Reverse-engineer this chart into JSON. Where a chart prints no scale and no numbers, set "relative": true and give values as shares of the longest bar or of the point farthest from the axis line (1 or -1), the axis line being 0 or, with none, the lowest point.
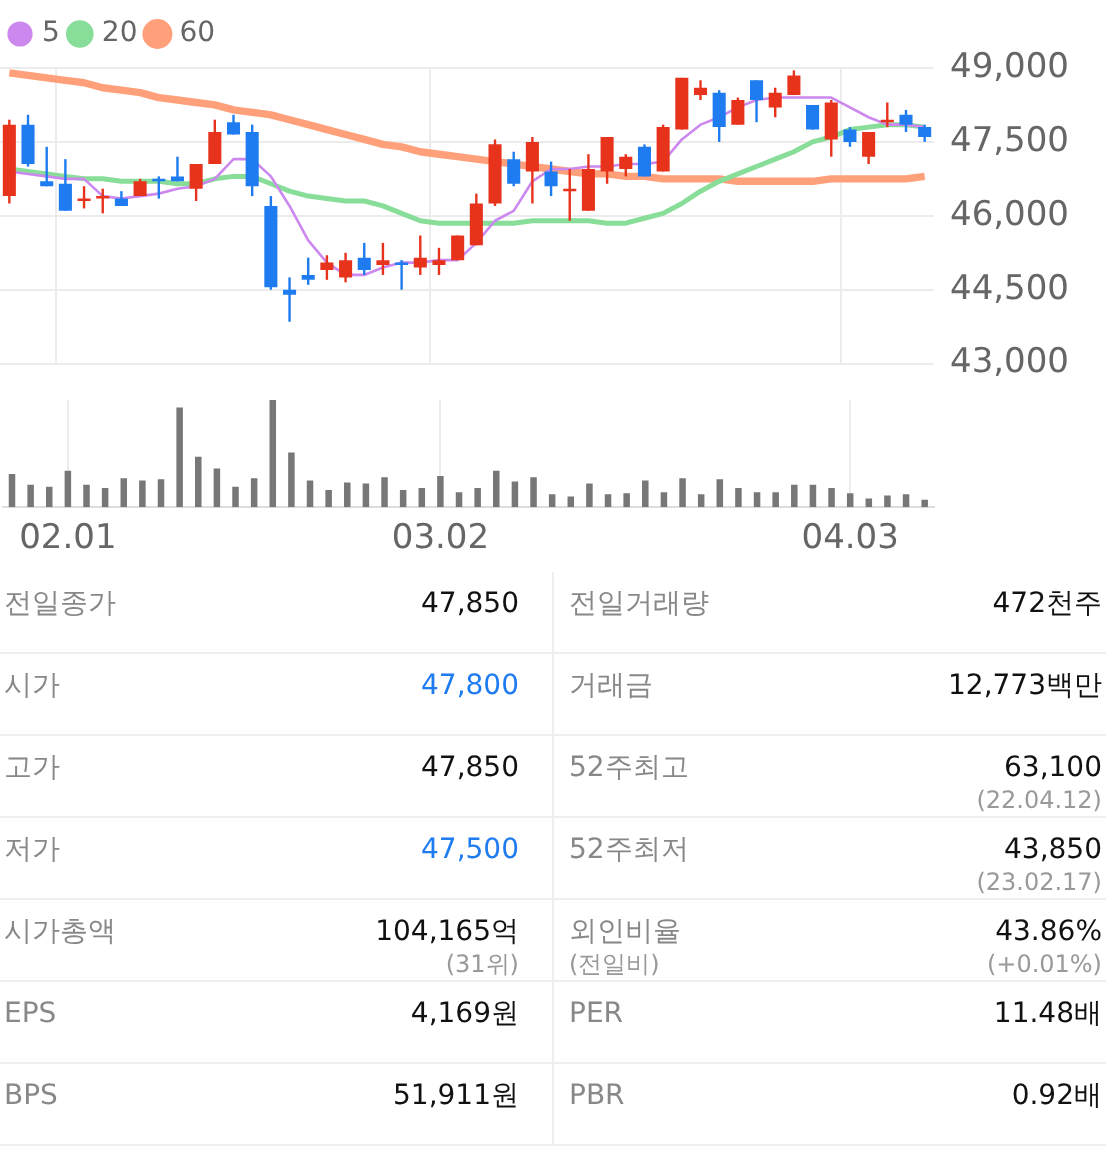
{
  "chart_data": [
    {
      "type": "candlestick",
      "categories": [
        null,
        null,
        null,
        "02.01",
        null,
        null,
        null,
        null,
        null,
        null,
        null,
        null,
        null,
        null,
        null,
        null,
        null,
        null,
        null,
        null,
        null,
        null,
        null,
        "03.02",
        null,
        null,
        null,
        null,
        null,
        null,
        null,
        null,
        null,
        null,
        null,
        null,
        null,
        null,
        null,
        null,
        null,
        null,
        null,
        null,
        null,
        "04.03",
        null,
        null,
        null,
        null
      ],
      "ohlc": [
        [
          46400,
          47950,
          46250,
          47850
        ],
        [
          47850,
          48050,
          47000,
          47050
        ],
        [
          46700,
          47400,
          46600,
          46600
        ],
        [
          46650,
          47150,
          46100,
          46100
        ],
        [
          46300,
          46600,
          46150,
          46350
        ],
        [
          46350,
          46550,
          46050,
          46400
        ],
        [
          46350,
          46500,
          46200,
          46200
        ],
        [
          46400,
          46750,
          46400,
          46700
        ],
        [
          46750,
          46800,
          46350,
          46700
        ],
        [
          46800,
          47200,
          46700,
          46700
        ],
        [
          46550,
          47050,
          46300,
          47050
        ],
        [
          47050,
          47950,
          47050,
          47700
        ],
        [
          47900,
          48050,
          47650,
          47650
        ],
        [
          47700,
          47850,
          46400,
          46600
        ],
        [
          46200,
          46400,
          44500,
          44550
        ],
        [
          44500,
          44750,
          43850,
          44400
        ],
        [
          44800,
          45150,
          44600,
          44700
        ],
        [
          44900,
          45200,
          44700,
          45050
        ],
        [
          44750,
          45250,
          44650,
          45100
        ],
        [
          45150,
          45450,
          44800,
          44900
        ],
        [
          45000,
          45450,
          44800,
          45100
        ],
        [
          45050,
          45100,
          44500,
          45000
        ],
        [
          44950,
          45600,
          44800,
          45150
        ],
        [
          45000,
          45350,
          44800,
          45100
        ],
        [
          45100,
          45600,
          45100,
          45600
        ],
        [
          45400,
          46450,
          45400,
          46250
        ],
        [
          46250,
          47550,
          46200,
          47450
        ],
        [
          47150,
          47300,
          46600,
          46650
        ],
        [
          46900,
          47600,
          46250,
          47500
        ],
        [
          46900,
          47100,
          46400,
          46600
        ],
        [
          46500,
          46950,
          45900,
          46550
        ],
        [
          46100,
          47250,
          46100,
          46950
        ],
        [
          46900,
          47600,
          46650,
          47600
        ],
        [
          46950,
          47250,
          46800,
          47200
        ],
        [
          47400,
          47450,
          46800,
          46800
        ],
        [
          46900,
          47850,
          46900,
          47800
        ],
        [
          47750,
          48800,
          47750,
          48800
        ],
        [
          48450,
          48750,
          48350,
          48600
        ],
        [
          48500,
          48550,
          47500,
          47800
        ],
        [
          47850,
          48400,
          47850,
          48350
        ],
        [
          48750,
          48750,
          47900,
          48350
        ],
        [
          48200,
          48600,
          48000,
          48500
        ],
        [
          48450,
          48950,
          48450,
          48850
        ],
        [
          48250,
          48250,
          47750,
          47750
        ],
        [
          47550,
          48350,
          47200,
          48300
        ],
        [
          47750,
          47800,
          47400,
          47500
        ],
        [
          47200,
          47700,
          47050,
          47700
        ],
        [
          47900,
          48300,
          47800,
          47950
        ],
        [
          48050,
          48150,
          47700,
          47850
        ],
        [
          47800,
          47850,
          47500,
          47600
        ]
      ],
      "colors": [
        "#e8331c",
        "#1e7cf0",
        "#1e7cf0",
        "#1e7cf0",
        "#e8331c",
        "#e8331c",
        "#1e7cf0",
        "#e8331c",
        "#1e7cf0",
        "#1e7cf0",
        "#e8331c",
        "#e8331c",
        "#1e7cf0",
        "#1e7cf0",
        "#1e7cf0",
        "#1e7cf0",
        "#1e7cf0",
        "#e8331c",
        "#e8331c",
        "#1e7cf0",
        "#e8331c",
        "#1e7cf0",
        "#e8331c",
        "#e8331c",
        "#e8331c",
        "#e8331c",
        "#e8331c",
        "#1e7cf0",
        "#e8331c",
        "#1e7cf0",
        "#e8331c",
        "#e8331c",
        "#e8331c",
        "#e8331c",
        "#1e7cf0",
        "#e8331c",
        "#e8331c",
        "#e8331c",
        "#1e7cf0",
        "#e8331c",
        "#1e7cf0",
        "#e8331c",
        "#e8331c",
        "#1e7cf0",
        "#e8331c",
        "#1e7cf0",
        "#e8331c",
        "#e8331c",
        "#1e7cf0",
        "#1e7cf0"
      ],
      "series": [
        {
          "name": "5",
          "type": "line",
          "color": "#cc88ee",
          "values": [
            46900,
            46850,
            46800,
            46750,
            46750,
            46400,
            46350,
            46400,
            46450,
            46550,
            46600,
            46750,
            47150,
            47150,
            46800,
            46200,
            45500,
            45050,
            44800,
            44800,
            44950,
            45050,
            45050,
            45100,
            45100,
            45450,
            45900,
            46100,
            46700,
            46950,
            46950,
            47000,
            47000,
            47050,
            47050,
            47100,
            47550,
            47850,
            48000,
            48200,
            48350,
            48400,
            48400,
            48400,
            48400,
            48200,
            48000,
            47850,
            47850,
            47800
          ]
        },
        {
          "name": "20",
          "type": "line",
          "color": "#88dd99",
          "values": [
            46950,
            46900,
            46850,
            46800,
            46750,
            46750,
            46700,
            46700,
            46700,
            46650,
            46650,
            46750,
            46800,
            46800,
            46650,
            46500,
            46400,
            46350,
            46300,
            46300,
            46200,
            46050,
            45900,
            45850,
            45850,
            45850,
            45850,
            45850,
            45900,
            45900,
            45900,
            45900,
            45850,
            45850,
            45950,
            46050,
            46250,
            46500,
            46700,
            46850,
            47000,
            47150,
            47300,
            47500,
            47600,
            47750,
            47800,
            47850,
            47850,
            47800
          ]
        },
        {
          "name": "60",
          "type": "line",
          "color": "#ffa07a",
          "values": [
            48900,
            48850,
            48800,
            48750,
            48700,
            48600,
            48550,
            48500,
            48400,
            48350,
            48300,
            48250,
            48150,
            48100,
            48050,
            47950,
            47850,
            47750,
            47650,
            47550,
            47450,
            47400,
            47300,
            47250,
            47200,
            47150,
            47100,
            47050,
            47000,
            46950,
            46900,
            46850,
            46850,
            46800,
            46800,
            46750,
            46750,
            46750,
            46750,
            46700,
            46700,
            46700,
            46700,
            46700,
            46750,
            46750,
            46750,
            46750,
            46750,
            46800
          ]
        }
      ],
      "ylim": [
        43000,
        49000
      ],
      "yticks": [
        {
          "value": 43000,
          "label": "43,000"
        },
        {
          "value": 44500,
          "label": "44,500"
        },
        {
          "value": 46000,
          "label": "46,000"
        },
        {
          "value": 47500,
          "label": "47,500"
        },
        {
          "value": 49000,
          "label": "49,000"
        }
      ],
      "grid": true,
      "legend": "top left",
      "tick_labels": "y",
      "marker": "none"
    },
    {
      "type": "bar",
      "categories": [
        null,
        null,
        null,
        "02.01",
        null,
        null,
        null,
        null,
        null,
        null,
        null,
        null,
        null,
        null,
        null,
        null,
        null,
        null,
        null,
        null,
        null,
        null,
        null,
        "03.02",
        null,
        null,
        null,
        null,
        null,
        null,
        null,
        null,
        null,
        null,
        null,
        null,
        null,
        null,
        null,
        null,
        null,
        null,
        null,
        null,
        null,
        "04.03",
        null,
        null,
        null,
        null
      ],
      "values": [
        0.31,
        0.21,
        0.19,
        0.34,
        0.21,
        0.18,
        0.27,
        0.25,
        0.26,
        0.93,
        0.47,
        0.36,
        0.19,
        0.27,
        1,
        0.51,
        0.25,
        0.16,
        0.23,
        0.22,
        0.28,
        0.16,
        0.18,
        0.29,
        0.14,
        0.18,
        0.34,
        0.24,
        0.28,
        0.12,
        0.1,
        0.22,
        0.12,
        0.13,
        0.25,
        0.14,
        0.27,
        0.12,
        0.26,
        0.18,
        0.14,
        0.14,
        0.21,
        0.21,
        0.18,
        0.13,
        0.08,
        0.11,
        0.12,
        0.07
      ],
      "color": "#777777",
      "relative": true,
      "tick_labels": "x",
      "grid": "x"
    },
    {
      "type": "other",
      "annotations": [
        "전일종가",
        "47,850",
        "전일거래량",
        "472천주",
        "시가",
        "47,800",
        "거래금",
        "12,773백만",
        "고가",
        "47,850",
        "52주최고",
        "63,100\n(22.04.12)",
        "저가",
        "47,500",
        "52주최저",
        "43,850\n(23.02.17)",
        "시가총액",
        "104,165억\n(31위)",
        "외인비율\n(전일비)",
        "43.86%\n(+0.01%)",
        "EPS",
        "4,169원",
        "PER",
        "11.48배",
        "BPS",
        "51,911원",
        "PBR",
        "0.92배"
      ],
      "colors": [
        "#888888",
        "#111111",
        "#888888",
        "#111111",
        "#888888",
        "#1e7cf0",
        "#888888",
        "#111111",
        "#888888",
        "#111111",
        "#888888",
        "#111111",
        "#888888",
        "#1e7cf0",
        "#888888",
        "#111111",
        "#888888",
        "#111111",
        "#888888",
        "#111111",
        "#888888",
        "#111111",
        "#888888",
        "#111111",
        "#888888",
        "#111111",
        "#888888",
        "#111111"
      ]
    }
  ]
}
